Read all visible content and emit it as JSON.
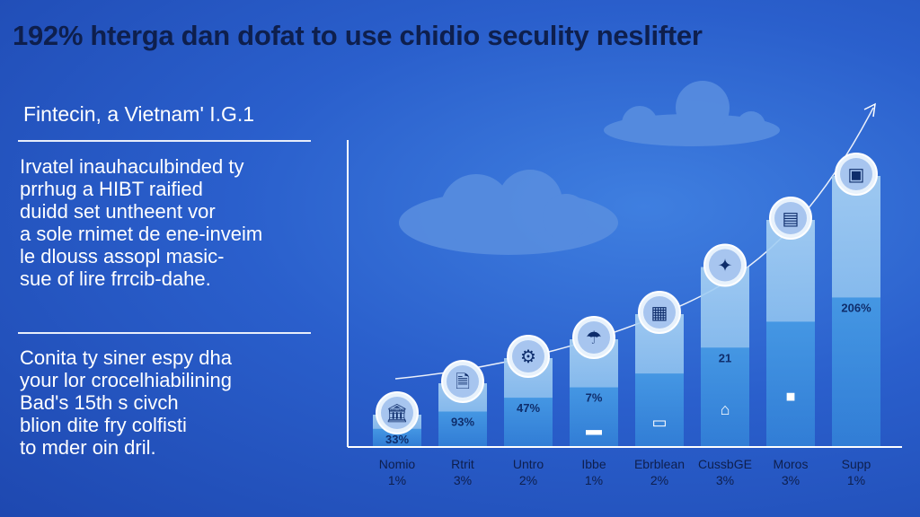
{
  "title": "192% hterga dan dofat to use chidio seculity neslifter",
  "subtitle": "Fintecin, a Vietnam' I.G.1",
  "paragraph1": [
    "Irvatel inauhaculbinded ty",
    "prrhug a HIBT raified",
    "duidd set untheent vor",
    "a sole rnimet de ene-inveim",
    "le dlouss assopl masic-",
    "sue of lire frrcib-dahe."
  ],
  "paragraph2": [
    "Conita ty siner espy dha",
    "your lor crocelhiabilining",
    "Bad's 15th s civch",
    "blion dite fry colfisti",
    "to mder oin dril."
  ],
  "chart_data": {
    "type": "bar",
    "categories": [
      "Nomio",
      "Rtrit",
      "Untro",
      "Ibbe",
      "Ebrblean",
      "CussbGE",
      "Moros",
      "Supp"
    ],
    "category_values": [
      "1%",
      "3%",
      "2%",
      "1%",
      "2%",
      "3%",
      "3%",
      "1%"
    ],
    "values": [
      1,
      3,
      2,
      1,
      2,
      3,
      3,
      1
    ],
    "bar_heights_rel": [
      0.1,
      0.2,
      0.28,
      0.34,
      0.42,
      0.57,
      0.72,
      0.86
    ],
    "bar_labels": [
      "33%",
      "93%",
      "47%",
      "7%",
      "",
      "21",
      "",
      "206%"
    ],
    "colors": {
      "bar_light": "#9ccaf0",
      "bar_dark": "#2f8be0",
      "circle": "#e8f2fc"
    },
    "icons": [
      "bank-icon",
      "document-icon",
      "stamp-icon",
      "umbrella-icon",
      "calculator-icon",
      "handshake-icon",
      "atm-icon",
      "building-icon"
    ],
    "lower_icons": [
      "",
      "",
      "",
      "money-icon",
      "wallet-icon",
      "house-icon",
      "lock-icon",
      ""
    ]
  }
}
